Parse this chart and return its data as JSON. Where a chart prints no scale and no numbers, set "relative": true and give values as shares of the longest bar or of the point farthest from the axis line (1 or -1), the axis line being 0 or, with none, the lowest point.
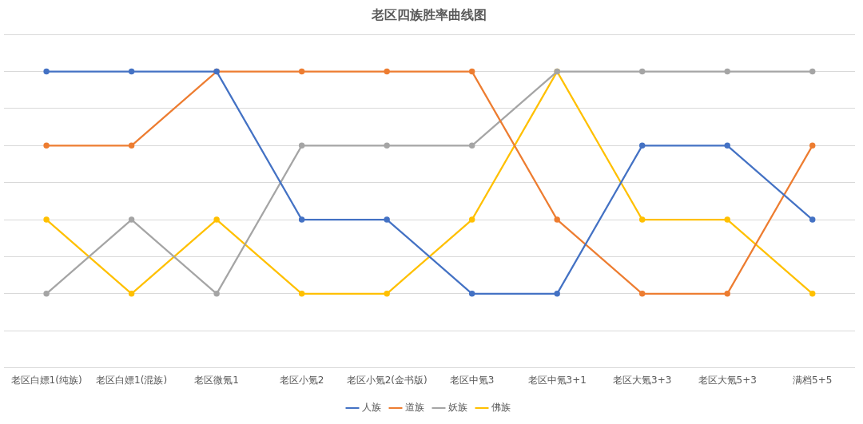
{
  "chart_data": {
    "type": "line",
    "title": "老区四族胜率曲线图",
    "categories": [
      "老区白嫖1(纯族)",
      "老区白嫖1(混族)",
      "老区微氪1",
      "老区小氪2",
      "老区小氪2(金书版)",
      "老区中氪3",
      "老区中氪3+1",
      "老区大氪3+3",
      "老区大氪5+3",
      "满档5+5"
    ],
    "series": [
      {
        "name": "人族",
        "color": "#4472c4",
        "values": [
          1,
          1,
          1,
          0.5,
          0.5,
          0.25,
          0.25,
          0.75,
          0.75,
          0.5
        ]
      },
      {
        "name": "道族",
        "color": "#ed7d31",
        "values": [
          0.75,
          0.75,
          1,
          1,
          1,
          1,
          0.5,
          0.25,
          0.25,
          0.75
        ]
      },
      {
        "name": "妖族",
        "color": "#a5a5a5",
        "values": [
          0.25,
          0.5,
          0.25,
          0.75,
          0.75,
          0.75,
          1,
          1,
          1,
          1
        ]
      },
      {
        "name": "佛族",
        "color": "#ffc000",
        "values": [
          0.5,
          0.25,
          0.5,
          0.25,
          0.25,
          0.5,
          1,
          0.5,
          0.5,
          0.25
        ]
      }
    ],
    "relative": true,
    "grid": "y",
    "legend": "bottom",
    "marker": "circle",
    "line_style": "solid"
  }
}
